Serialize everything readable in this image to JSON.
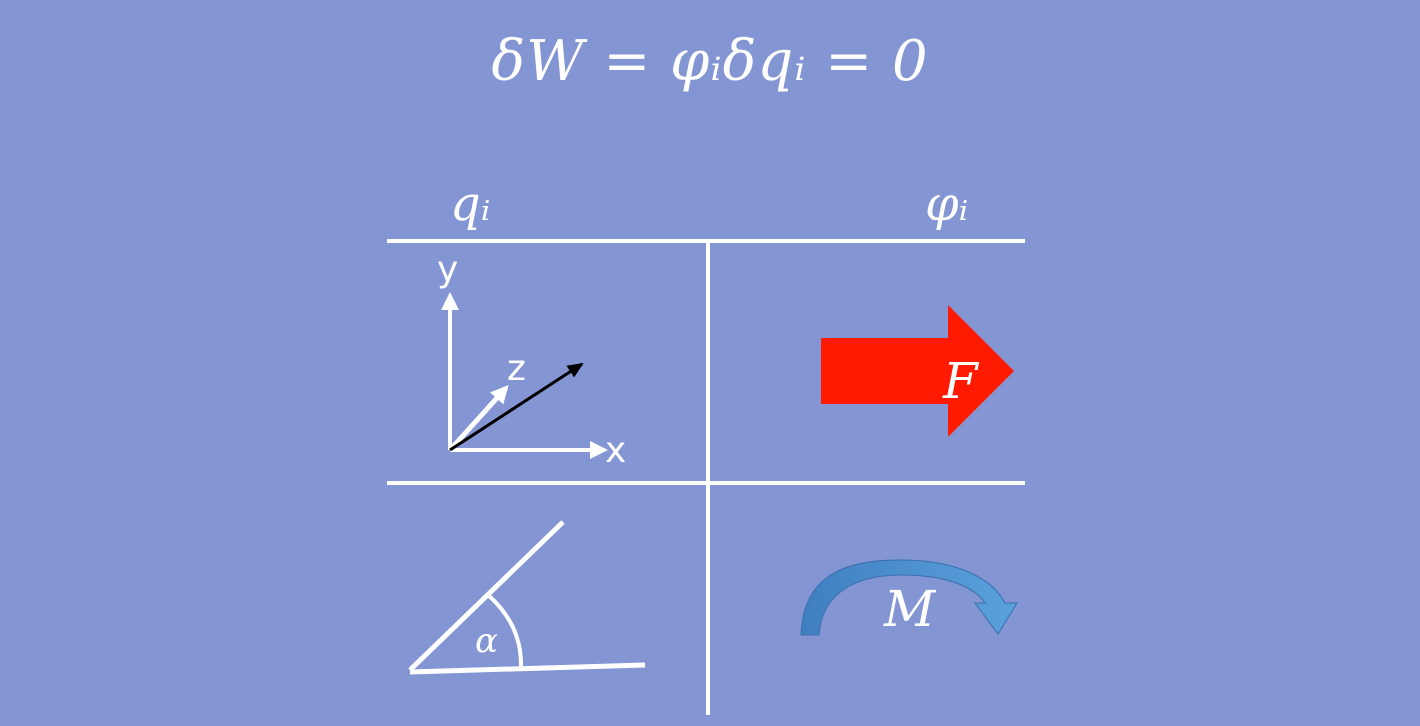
{
  "equation": {
    "text": "δW = φᵢδqᵢ = 0"
  },
  "columns": {
    "q": "qᵢ",
    "phi": "φᵢ"
  },
  "axes": {
    "y": "y",
    "z": "z",
    "x": "x"
  },
  "symbols": {
    "force": "F",
    "angle": "α",
    "moment": "M"
  },
  "colors": {
    "background": "#8395d3",
    "force_arrow": "#ff1a00",
    "moment_arrow": "#4f8fcc",
    "lines": "#ffffff",
    "vector": "#000000"
  }
}
